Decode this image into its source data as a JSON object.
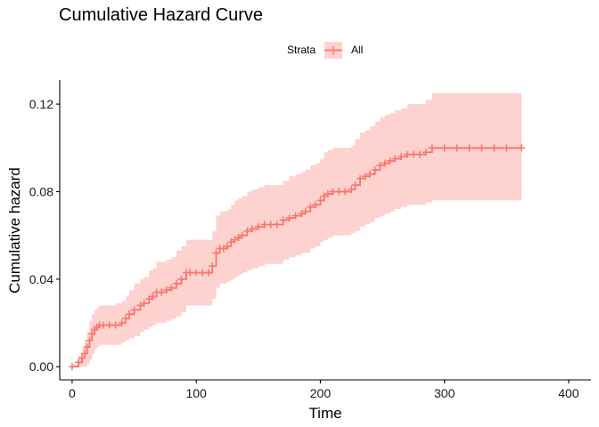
{
  "chart_data": {
    "type": "line",
    "title": "Cumulative Hazard Curve",
    "xlabel": "Time",
    "ylabel": "Cumulative hazard",
    "xlim": [
      -10,
      418
    ],
    "ylim": [
      -0.006,
      0.131
    ],
    "x_ticks": [
      0,
      100,
      200,
      300,
      400
    ],
    "x_tick_labels": [
      "0",
      "100",
      "200",
      "300",
      "400"
    ],
    "y_ticks": [
      0,
      0.04,
      0.08,
      0.12
    ],
    "y_tick_labels": [
      "0.00",
      "0.04",
      "0.08",
      "0.12"
    ],
    "grid": false,
    "legend": {
      "title": "Strata",
      "placement": "top",
      "entries": [
        "All"
      ]
    },
    "colors": {
      "line": "#F8766D",
      "band": "#F8766D",
      "band_opacity": 0.33,
      "axis": "#000000"
    },
    "series": [
      {
        "name": "All",
        "step": true,
        "x": [
          0,
          5,
          8,
          10,
          12,
          14,
          16,
          18,
          20,
          22,
          25,
          30,
          35,
          40,
          43,
          46,
          50,
          55,
          58,
          62,
          65,
          68,
          72,
          76,
          80,
          84,
          88,
          92,
          95,
          100,
          105,
          110,
          113,
          116,
          119,
          122,
          125,
          128,
          131,
          134,
          137,
          141,
          145,
          150,
          155,
          160,
          165,
          170,
          175,
          180,
          185,
          188,
          192,
          196,
          200,
          203,
          206,
          210,
          215,
          220,
          225,
          228,
          232,
          236,
          240,
          244,
          248,
          252,
          256,
          260,
          265,
          270,
          275,
          280,
          285,
          290,
          300,
          310,
          320,
          330,
          340,
          350,
          362
        ],
        "y": [
          0,
          0.002,
          0.004,
          0.006,
          0.009,
          0.012,
          0.015,
          0.017,
          0.018,
          0.019,
          0.019,
          0.019,
          0.019,
          0.02,
          0.022,
          0.024,
          0.026,
          0.028,
          0.029,
          0.031,
          0.032,
          0.034,
          0.034,
          0.035,
          0.036,
          0.038,
          0.04,
          0.043,
          0.043,
          0.043,
          0.043,
          0.043,
          0.046,
          0.052,
          0.054,
          0.054,
          0.055,
          0.057,
          0.058,
          0.059,
          0.06,
          0.062,
          0.063,
          0.064,
          0.065,
          0.065,
          0.065,
          0.067,
          0.068,
          0.069,
          0.07,
          0.071,
          0.073,
          0.074,
          0.076,
          0.078,
          0.079,
          0.08,
          0.08,
          0.08,
          0.081,
          0.083,
          0.086,
          0.087,
          0.088,
          0.09,
          0.092,
          0.093,
          0.094,
          0.095,
          0.096,
          0.097,
          0.097,
          0.097,
          0.098,
          0.1,
          0.1,
          0.1,
          0.1,
          0.1,
          0.1,
          0.1,
          0.1
        ],
        "lower": [
          0,
          0,
          0,
          0,
          0.001,
          0.003,
          0.006,
          0.008,
          0.009,
          0.01,
          0.01,
          0.01,
          0.01,
          0.011,
          0.012,
          0.013,
          0.014,
          0.016,
          0.017,
          0.018,
          0.019,
          0.02,
          0.02,
          0.021,
          0.022,
          0.023,
          0.025,
          0.028,
          0.028,
          0.028,
          0.028,
          0.028,
          0.031,
          0.036,
          0.038,
          0.038,
          0.039,
          0.04,
          0.041,
          0.042,
          0.043,
          0.044,
          0.045,
          0.046,
          0.047,
          0.047,
          0.047,
          0.049,
          0.05,
          0.051,
          0.052,
          0.052,
          0.054,
          0.055,
          0.057,
          0.058,
          0.059,
          0.06,
          0.06,
          0.06,
          0.061,
          0.062,
          0.064,
          0.065,
          0.066,
          0.068,
          0.069,
          0.07,
          0.071,
          0.072,
          0.073,
          0.074,
          0.074,
          0.074,
          0.075,
          0.076,
          0.076,
          0.076,
          0.076,
          0.076,
          0.076,
          0.076,
          0.076
        ],
        "upper": [
          0.001,
          0.005,
          0.009,
          0.012,
          0.016,
          0.021,
          0.024,
          0.026,
          0.027,
          0.028,
          0.028,
          0.028,
          0.029,
          0.03,
          0.032,
          0.035,
          0.038,
          0.04,
          0.041,
          0.044,
          0.045,
          0.048,
          0.048,
          0.049,
          0.05,
          0.053,
          0.055,
          0.058,
          0.058,
          0.058,
          0.058,
          0.058,
          0.062,
          0.069,
          0.071,
          0.071,
          0.072,
          0.074,
          0.076,
          0.077,
          0.078,
          0.08,
          0.081,
          0.082,
          0.083,
          0.083,
          0.083,
          0.085,
          0.087,
          0.088,
          0.089,
          0.09,
          0.092,
          0.093,
          0.095,
          0.098,
          0.099,
          0.1,
          0.1,
          0.1,
          0.101,
          0.104,
          0.107,
          0.108,
          0.11,
          0.112,
          0.114,
          0.115,
          0.116,
          0.117,
          0.118,
          0.12,
          0.12,
          0.12,
          0.122,
          0.125,
          0.125,
          0.125,
          0.125,
          0.125,
          0.125,
          0.125,
          0.125
        ]
      }
    ]
  }
}
